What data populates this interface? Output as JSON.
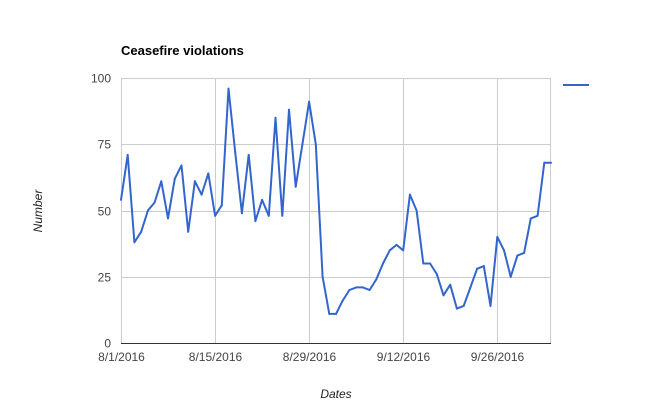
{
  "chart_data": {
    "type": "line",
    "title": "Ceasefire violations",
    "xlabel": "Dates",
    "ylabel": "Number",
    "ylim": [
      0,
      100
    ],
    "yticks": [
      "0",
      "25",
      "50",
      "75",
      "100"
    ],
    "xlim": [
      "2016-08-01",
      "2016-10-04"
    ],
    "xticks": [
      {
        "date": "2016-08-01",
        "label": "8/1/2016"
      },
      {
        "date": "2016-08-15",
        "label": "8/15/2016"
      },
      {
        "date": "2016-08-29",
        "label": "8/29/2016"
      },
      {
        "date": "2016-09-12",
        "label": "9/12/2016"
      },
      {
        "date": "2016-09-26",
        "label": "9/26/2016"
      }
    ],
    "grid": true,
    "legend": "right",
    "series_color": "#3366cc",
    "series": [
      {
        "x": [
          "2016-08-01",
          "2016-08-02",
          "2016-08-03",
          "2016-08-04",
          "2016-08-05",
          "2016-08-06",
          "2016-08-07",
          "2016-08-08",
          "2016-08-09",
          "2016-08-10",
          "2016-08-11",
          "2016-08-12",
          "2016-08-13",
          "2016-08-14",
          "2016-08-15",
          "2016-08-16",
          "2016-08-17",
          "2016-08-18",
          "2016-08-19",
          "2016-08-20",
          "2016-08-21",
          "2016-08-22",
          "2016-08-23",
          "2016-08-24",
          "2016-08-25",
          "2016-08-26",
          "2016-08-27",
          "2016-08-28",
          "2016-08-29",
          "2016-08-30",
          "2016-08-31",
          "2016-09-01",
          "2016-09-02",
          "2016-09-03",
          "2016-09-04",
          "2016-09-05",
          "2016-09-06",
          "2016-09-07",
          "2016-09-08",
          "2016-09-09",
          "2016-09-10",
          "2016-09-11",
          "2016-09-12",
          "2016-09-13",
          "2016-09-14",
          "2016-09-15",
          "2016-09-16",
          "2016-09-17",
          "2016-09-18",
          "2016-09-19",
          "2016-09-20",
          "2016-09-21",
          "2016-09-22",
          "2016-09-23",
          "2016-09-24",
          "2016-09-25",
          "2016-09-26",
          "2016-09-27",
          "2016-09-28",
          "2016-09-29",
          "2016-09-30",
          "2016-10-01",
          "2016-10-02",
          "2016-10-03",
          "2016-10-04"
        ],
        "values": [
          54,
          71,
          38,
          42,
          50,
          53,
          61,
          47,
          62,
          67,
          42,
          61,
          56,
          64,
          48,
          52,
          96,
          72,
          49,
          71,
          46,
          54,
          48,
          85,
          48,
          88,
          59,
          75,
          91,
          75,
          25,
          11,
          11,
          16,
          20,
          21,
          21,
          20,
          24,
          30,
          35,
          37,
          35,
          56,
          50,
          30,
          30,
          26,
          18,
          22,
          13,
          14,
          21,
          28,
          29,
          14,
          40,
          35,
          25,
          33,
          34,
          47,
          48,
          68,
          68
        ]
      }
    ]
  }
}
